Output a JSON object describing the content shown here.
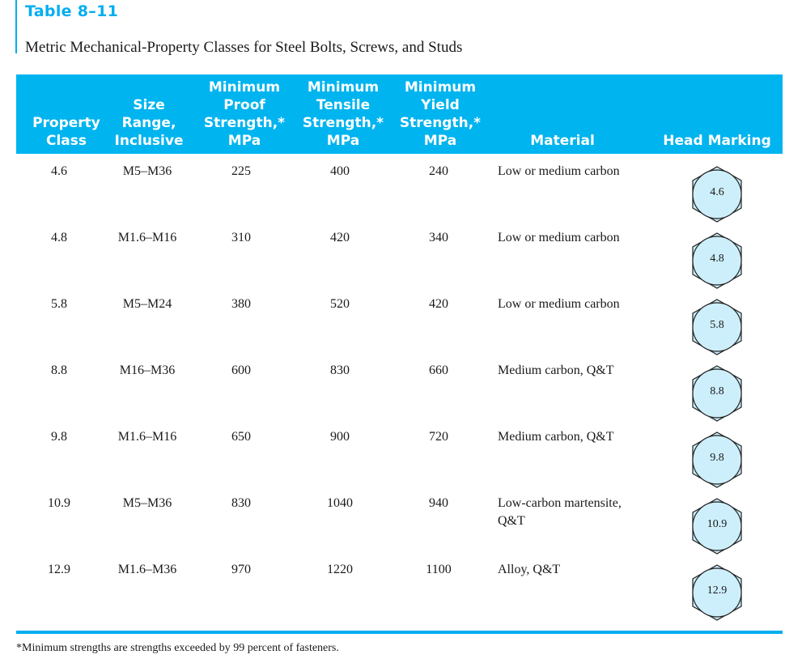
{
  "title": {
    "number": "Table 8–11",
    "caption": "Metric Mechanical-Property Classes for Steel Bolts, Screws, and Studs"
  },
  "columns": {
    "class": [
      "Property",
      "Class"
    ],
    "size": [
      "Size",
      "Range,",
      "Inclusive"
    ],
    "proof": [
      "Minimum",
      "Proof",
      "Strength,*",
      "MPa"
    ],
    "tensile": [
      "Minimum",
      "Tensile",
      "Strength,*",
      "MPa"
    ],
    "yield": [
      "Minimum",
      "Yield",
      "Strength,*",
      "MPa"
    ],
    "material": [
      "Material"
    ],
    "marking": [
      "Head Marking"
    ]
  },
  "rows": [
    {
      "class": "4.6",
      "size": "M5–M36",
      "proof": "225",
      "tensile": "400",
      "yield": "240",
      "material": [
        "Low or medium carbon"
      ],
      "marking": "4.6"
    },
    {
      "class": "4.8",
      "size": "M1.6–M16",
      "proof": "310",
      "tensile": "420",
      "yield": "340",
      "material": [
        "Low or medium carbon"
      ],
      "marking": "4.8"
    },
    {
      "class": "5.8",
      "size": "M5–M24",
      "proof": "380",
      "tensile": "520",
      "yield": "420",
      "material": [
        "Low or medium carbon"
      ],
      "marking": "5.8"
    },
    {
      "class": "8.8",
      "size": "M16–M36",
      "proof": "600",
      "tensile": "830",
      "yield": "660",
      "material": [
        "Medium carbon, Q&T"
      ],
      "marking": "8.8"
    },
    {
      "class": "9.8",
      "size": "M1.6–M16",
      "proof": "650",
      "tensile": "900",
      "yield": "720",
      "material": [
        "Medium carbon, Q&T"
      ],
      "marking": "9.8"
    },
    {
      "class": "10.9",
      "size": "M5–M36",
      "proof": "830",
      "tensile": "1040",
      "yield": "940",
      "material": [
        "Low-carbon martensite,",
        "Q&T"
      ],
      "marking": "10.9"
    },
    {
      "class": "12.9",
      "size": "M1.6–M36",
      "proof": "970",
      "tensile": "1220",
      "yield": "1100",
      "material": [
        "Alloy, Q&T"
      ],
      "marking": "12.9"
    }
  ],
  "footnote": "*Minimum strengths are strengths exceeded by 99 percent of fasteners.",
  "colors": {
    "accent": "#00aeef",
    "header_bg": "#00b4ef",
    "hex_fill": "#cdeffb",
    "text": "#1a1a1a"
  }
}
